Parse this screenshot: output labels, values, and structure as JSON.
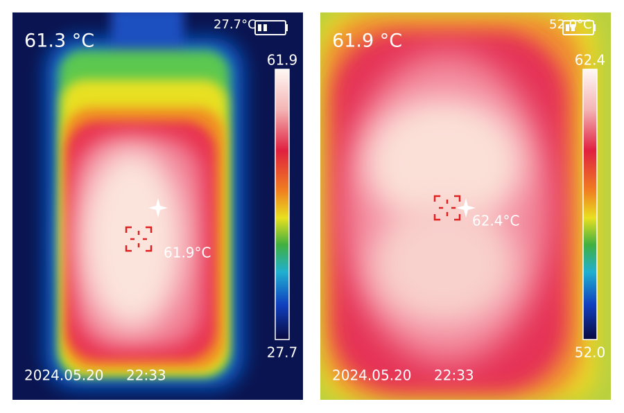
{
  "panels": [
    {
      "center_temp": "61.3 °C",
      "corner_temp": "27.7°C",
      "scale_max": "61.9",
      "scale_min": "27.7",
      "spot_temp": "61.9°C",
      "date": "2024.05.20",
      "time": "22:33"
    },
    {
      "center_temp": "61.9 °C",
      "corner_temp": "52.0°C",
      "scale_max": "62.4",
      "scale_min": "52.0",
      "spot_temp": "62.4°C",
      "date": "2024.05.20",
      "time": "22:33"
    }
  ]
}
